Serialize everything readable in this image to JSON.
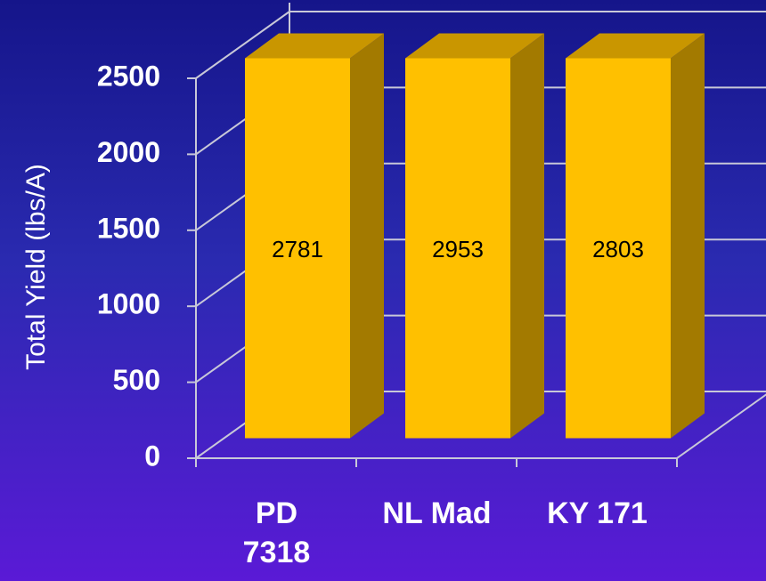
{
  "chart_data": {
    "type": "bar3d",
    "y_axis_label": "Total Yield (lbs/A)",
    "categories": [
      "PD 7318",
      "NL Mad",
      "KY 171"
    ],
    "values": [
      2781,
      2953,
      2803
    ],
    "color": "#ffc000",
    "ylim": [
      0,
      2500
    ],
    "yticks": [
      0,
      500,
      1000,
      1500,
      2000,
      2500
    ],
    "grid": true
  }
}
